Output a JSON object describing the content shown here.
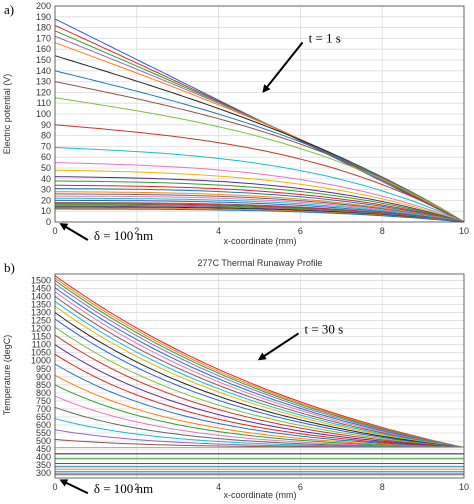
{
  "chart_data": [
    {
      "type": "line",
      "panel_label": "a)",
      "title": "",
      "xlabel": "x-coordinate (mm)",
      "ylabel": "Electric potential (V)",
      "xlim": [
        0,
        10
      ],
      "ylim": [
        0,
        200
      ],
      "xticks": [
        "0",
        "2",
        "4",
        "6",
        "8",
        "10"
      ],
      "yticks": [
        "0",
        "10",
        "20",
        "30",
        "40",
        "50",
        "60",
        "70",
        "80",
        "90",
        "100",
        "110",
        "120",
        "130",
        "140",
        "150",
        "160",
        "170",
        "180",
        "190",
        "200"
      ],
      "grid": true,
      "series_v0": [
        188,
        182,
        177,
        172,
        166,
        154,
        140,
        130,
        115,
        90,
        69,
        55,
        48,
        42,
        38,
        34,
        31,
        28,
        26,
        24,
        22,
        20,
        18,
        17,
        16,
        15,
        14,
        13,
        12
      ],
      "colors": [
        "#2f5fd0",
        "#d62728",
        "#2ca02c",
        "#9467bd",
        "#ff7f0e",
        "#222222",
        "#1f77b4",
        "#8c564b",
        "#7fbf3f",
        "#c0392b",
        "#17becf",
        "#e377c2",
        "#e6b800",
        "#5b2a86",
        "#2ca02c",
        "#d62728",
        "#1f77b4",
        "#ff7f0e",
        "#666666",
        "#e377c2",
        "#17becf",
        "#2f5fd0",
        "#8c564b",
        "#d62728",
        "#2ca02c",
        "#9467bd",
        "#222222",
        "#ff7f0e",
        "#1f77b4"
      ],
      "annotations": [
        {
          "text": "t = 1 s",
          "x": 6.2,
          "y": 170,
          "arrow_to": [
            5.1,
            121
          ]
        },
        {
          "text": "δ = 100 nm",
          "x": 0.95,
          "y": -13,
          "arrow_to": [
            0.15,
            -2
          ]
        }
      ]
    },
    {
      "type": "line",
      "panel_label": "b)",
      "title": "277C Thermal Runaway Profile",
      "xlabel": "x-coordinate (mm)",
      "ylabel": "Temperature (degC)",
      "xlim": [
        0,
        10
      ],
      "ylim": [
        270,
        1540
      ],
      "xticks": [
        "0",
        "2",
        "4",
        "6",
        "8",
        "10"
      ],
      "yticks": [
        "300",
        "350",
        "400",
        "450",
        "500",
        "550",
        "600",
        "650",
        "700",
        "750",
        "800",
        "850",
        "900",
        "950",
        "1000",
        "1050",
        "1100",
        "1150",
        "1200",
        "1250",
        "1300",
        "1350",
        "1400",
        "1450",
        "1500"
      ],
      "grid": true,
      "series_t0": [
        1530,
        1515,
        1500,
        1480,
        1455,
        1430,
        1400,
        1370,
        1340,
        1300,
        1260,
        1210,
        1160,
        1100,
        1040,
        980,
        910,
        850,
        780,
        710,
        640,
        570,
        510,
        460,
        420,
        390,
        360,
        340,
        325,
        310,
        300,
        290
      ],
      "colors": [
        "#d62728",
        "#ff7f0e",
        "#2ca02c",
        "#9467bd",
        "#1f77b4",
        "#e377c2",
        "#8c564b",
        "#17becf",
        "#e6b800",
        "#222222",
        "#2f5fd0",
        "#7fbf3f",
        "#c0392b",
        "#5b2a86",
        "#d62728",
        "#1f77b4",
        "#ff7f0e",
        "#2ca02c",
        "#e377c2",
        "#666666",
        "#17becf",
        "#9467bd",
        "#8c564b",
        "#e6b800",
        "#222222",
        "#2ca02c",
        "#d62728",
        "#1f77b4",
        "#ff7f0e",
        "#9467bd",
        "#17becf",
        "#666666"
      ],
      "annotations": [
        {
          "text": "t = 30 s",
          "x": 6.1,
          "y": 1195,
          "arrow_to": [
            5.0,
            1010
          ]
        },
        {
          "text": "δ = 100 nm",
          "x": 0.95,
          "y": 200,
          "arrow_to": [
            0.15,
            255
          ]
        }
      ]
    }
  ]
}
